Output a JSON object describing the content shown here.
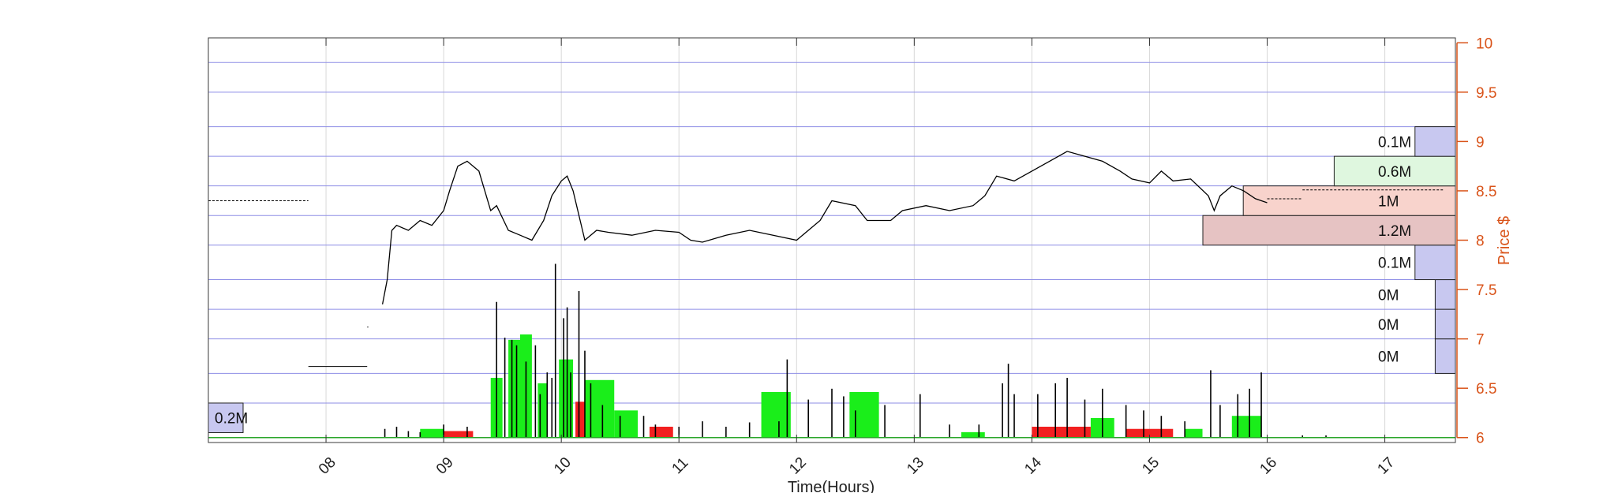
{
  "chart_data": {
    "type": "line",
    "xlabel": "Time(Hours)",
    "ylabel": "Price $",
    "xlim": [
      7.0,
      17.6
    ],
    "ylim": [
      5.95,
      10.05
    ],
    "x_ticks": [
      8,
      9,
      10,
      11,
      12,
      13,
      14,
      15,
      16,
      17
    ],
    "x_tick_labels": [
      "08",
      "09",
      "10",
      "11",
      "12",
      "13",
      "14",
      "15",
      "16",
      "17"
    ],
    "y_ticks": [
      6,
      6.5,
      7,
      7.5,
      8,
      8.5,
      9,
      9.5,
      10
    ],
    "y_tick_labels": [
      "6",
      "6.5",
      "7",
      "7.5",
      "8",
      "8.5",
      "9",
      "9.5",
      "10"
    ],
    "grid": true,
    "price_series": {
      "name": "",
      "x": [
        8.48,
        8.52,
        8.56,
        8.6,
        8.7,
        8.8,
        8.9,
        9.0,
        9.05,
        9.12,
        9.2,
        9.3,
        9.4,
        9.45,
        9.55,
        9.65,
        9.75,
        9.85,
        9.92,
        10.0,
        10.05,
        10.1,
        10.2,
        10.3,
        10.4,
        10.6,
        10.8,
        11.0,
        11.1,
        11.2,
        11.4,
        11.6,
        11.8,
        12.0,
        12.1,
        12.2,
        12.3,
        12.5,
        12.6,
        12.8,
        12.9,
        13.1,
        13.3,
        13.5,
        13.6,
        13.7,
        13.85,
        14.0,
        14.15,
        14.3,
        14.45,
        14.6,
        14.75,
        14.85,
        15.0,
        15.1,
        15.2,
        15.35,
        15.5,
        15.55,
        15.6,
        15.7,
        15.8,
        15.9,
        16.0
      ],
      "y": [
        7.35,
        7.6,
        8.1,
        8.15,
        8.1,
        8.2,
        8.15,
        8.3,
        8.5,
        8.75,
        8.8,
        8.7,
        8.3,
        8.35,
        8.1,
        8.05,
        8.0,
        8.2,
        8.45,
        8.6,
        8.65,
        8.5,
        8.0,
        8.1,
        8.08,
        8.05,
        8.1,
        8.08,
        8.0,
        7.98,
        8.05,
        8.1,
        8.05,
        8.0,
        8.1,
        8.2,
        8.4,
        8.35,
        8.2,
        8.2,
        8.3,
        8.35,
        8.3,
        8.35,
        8.45,
        8.65,
        8.6,
        8.7,
        8.8,
        8.9,
        8.85,
        8.8,
        8.7,
        8.62,
        8.58,
        8.7,
        8.6,
        8.62,
        8.45,
        8.3,
        8.45,
        8.55,
        8.5,
        8.42,
        8.38
      ]
    },
    "premarket_levels": [
      {
        "x": [
          7.0,
          7.85
        ],
        "y": 8.4
      },
      {
        "x": [
          7.85,
          8.35
        ],
        "y": 6.72
      },
      {
        "x": [
          8.35,
          8.36
        ],
        "y": 7.12
      }
    ],
    "afterhours_levels": [
      {
        "x": [
          16.0,
          16.3
        ],
        "y": 8.42
      },
      {
        "x": [
          16.3,
          17.5
        ],
        "y": 8.51
      }
    ],
    "volume_profile": {
      "bins": [
        {
          "y0": 6.65,
          "y1": 7.0,
          "label": "0M",
          "value": 0.02
        },
        {
          "y0": 7.0,
          "y1": 7.3,
          "label": "0M",
          "value": 0.02
        },
        {
          "y0": 7.3,
          "y1": 7.6,
          "label": "0M",
          "value": 0.02
        },
        {
          "y0": 7.6,
          "y1": 7.95,
          "label": "0.1M",
          "value": 0.04
        },
        {
          "y0": 7.95,
          "y1": 8.25,
          "label": "1.2M",
          "value": 0.25
        },
        {
          "y0": 8.25,
          "y1": 8.55,
          "label": "1M",
          "value": 0.21
        },
        {
          "y0": 8.55,
          "y1": 8.85,
          "label": "0.6M",
          "value": 0.12
        },
        {
          "y0": 8.85,
          "y1": 9.15,
          "label": "0.1M",
          "value": 0.04
        }
      ],
      "premarket_bin": {
        "y0": 6.05,
        "y1": 6.35,
        "label": "0.2M"
      }
    },
    "volume_bars": {
      "buy_blocks": [
        {
          "x0": 9.4,
          "x1": 9.5,
          "h": 0.55
        },
        {
          "x0": 9.55,
          "x1": 9.65,
          "h": 0.9
        },
        {
          "x0": 9.65,
          "x1": 9.75,
          "h": 0.95
        },
        {
          "x0": 9.8,
          "x1": 9.88,
          "h": 0.5
        },
        {
          "x0": 9.98,
          "x1": 10.1,
          "h": 0.72
        },
        {
          "x0": 10.2,
          "x1": 10.45,
          "h": 0.53
        },
        {
          "x0": 10.45,
          "x1": 10.65,
          "h": 0.25
        },
        {
          "x0": 11.7,
          "x1": 11.95,
          "h": 0.42
        },
        {
          "x0": 12.45,
          "x1": 12.7,
          "h": 0.42
        },
        {
          "x0": 14.5,
          "x1": 14.7,
          "h": 0.18
        },
        {
          "x0": 15.7,
          "x1": 15.95,
          "h": 0.2
        },
        {
          "x0": 8.8,
          "x1": 9.0,
          "h": 0.08
        },
        {
          "x0": 13.4,
          "x1": 13.6,
          "h": 0.05
        },
        {
          "x0": 15.3,
          "x1": 15.45,
          "h": 0.08
        }
      ],
      "sell_blocks": [
        {
          "x0": 9.0,
          "x1": 9.25,
          "h": 0.06
        },
        {
          "x0": 10.12,
          "x1": 10.2,
          "h": 0.33
        },
        {
          "x0": 10.75,
          "x1": 10.95,
          "h": 0.1
        },
        {
          "x0": 14.0,
          "x1": 14.5,
          "h": 0.1
        },
        {
          "x0": 14.8,
          "x1": 15.2,
          "h": 0.08
        }
      ],
      "spikes": [
        [
          8.5,
          0.08
        ],
        [
          8.6,
          0.1
        ],
        [
          8.7,
          0.06
        ],
        [
          8.8,
          0.05
        ],
        [
          9.0,
          0.12
        ],
        [
          9.2,
          0.1
        ],
        [
          9.45,
          1.25
        ],
        [
          9.52,
          0.92
        ],
        [
          9.58,
          0.9
        ],
        [
          9.62,
          0.85
        ],
        [
          9.7,
          0.7
        ],
        [
          9.78,
          0.85
        ],
        [
          9.82,
          0.4
        ],
        [
          9.88,
          0.6
        ],
        [
          9.92,
          0.55
        ],
        [
          9.95,
          1.6
        ],
        [
          10.02,
          1.1
        ],
        [
          10.05,
          1.2
        ],
        [
          10.08,
          0.6
        ],
        [
          10.15,
          1.35
        ],
        [
          10.2,
          0.8
        ],
        [
          10.25,
          0.5
        ],
        [
          10.35,
          0.3
        ],
        [
          10.5,
          0.2
        ],
        [
          10.7,
          0.2
        ],
        [
          10.8,
          0.12
        ],
        [
          11.0,
          0.1
        ],
        [
          11.2,
          0.15
        ],
        [
          11.4,
          0.1
        ],
        [
          11.6,
          0.14
        ],
        [
          11.85,
          0.15
        ],
        [
          11.92,
          0.72
        ],
        [
          12.1,
          0.35
        ],
        [
          12.3,
          0.45
        ],
        [
          12.4,
          0.38
        ],
        [
          12.5,
          0.25
        ],
        [
          12.75,
          0.3
        ],
        [
          13.05,
          0.4
        ],
        [
          13.3,
          0.12
        ],
        [
          13.55,
          0.12
        ],
        [
          13.75,
          0.5
        ],
        [
          13.8,
          0.68
        ],
        [
          13.85,
          0.4
        ],
        [
          14.05,
          0.4
        ],
        [
          14.2,
          0.5
        ],
        [
          14.3,
          0.55
        ],
        [
          14.45,
          0.35
        ],
        [
          14.6,
          0.45
        ],
        [
          14.8,
          0.3
        ],
        [
          14.95,
          0.25
        ],
        [
          15.1,
          0.2
        ],
        [
          15.3,
          0.15
        ],
        [
          15.52,
          0.62
        ],
        [
          15.6,
          0.3
        ],
        [
          15.75,
          0.4
        ],
        [
          15.85,
          0.45
        ],
        [
          15.95,
          0.6
        ],
        [
          16.3,
          0.02
        ],
        [
          16.5,
          0.02
        ]
      ],
      "colors": {
        "buy": "#1aee1a",
        "sell": "#f22020",
        "spike": "#000000"
      }
    },
    "colors": {
      "price_line": "#000000",
      "grid_major": "#8e8ee6",
      "grid_minor": "#d8d8d8",
      "price_axis": "#d95319",
      "vp_neutral": "#c8c8f0",
      "vp_buy": "#dff7df",
      "vp_sell_light": "#f8d3cc",
      "vp_sell_dark": "#e6c3c3"
    }
  }
}
